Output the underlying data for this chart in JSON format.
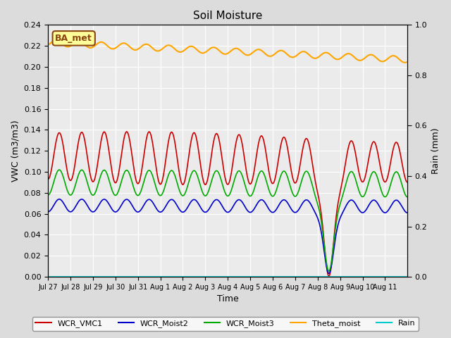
{
  "title": "Soil Moisture",
  "xlabel": "Time",
  "ylabel_left": "VWC (m3/m3)",
  "ylabel_right": "Rain (mm)",
  "ylim_left": [
    0.0,
    0.24
  ],
  "ylim_right": [
    0.0,
    1.0
  ],
  "yticks_left": [
    0.0,
    0.02,
    0.04,
    0.06,
    0.08,
    0.1,
    0.12,
    0.14,
    0.16,
    0.18,
    0.2,
    0.22,
    0.24
  ],
  "yticks_right": [
    0.0,
    0.2,
    0.4,
    0.6,
    0.8,
    1.0
  ],
  "background_color": "#dcdcdc",
  "plot_bg_color": "#ebebeb",
  "label_box_text": "BA_met",
  "label_box_facecolor": "#ffff99",
  "label_box_edgecolor": "#8B4513",
  "colors": {
    "WCR_VMC1": "#cc0000",
    "WCR_Moist2": "#0000cc",
    "WCR_Moist3": "#00aa00",
    "Theta_moist": "#ffa500",
    "Rain": "#00cccc"
  },
  "legend_labels": [
    "WCR_VMC1",
    "WCR_Moist2",
    "WCR_Moist3",
    "Theta_moist",
    "Rain"
  ],
  "xtick_labels": [
    "Jul 27",
    "Jul 28",
    "Jul 29",
    "Jul 30",
    "Jul 31",
    "Aug 1",
    "Aug 2",
    "Aug 3",
    "Aug 4",
    "Aug 5",
    "Aug 6",
    "Aug 7",
    "Aug 8",
    "Aug 9",
    "Aug 10",
    "Aug 11"
  ],
  "n_days": 16
}
